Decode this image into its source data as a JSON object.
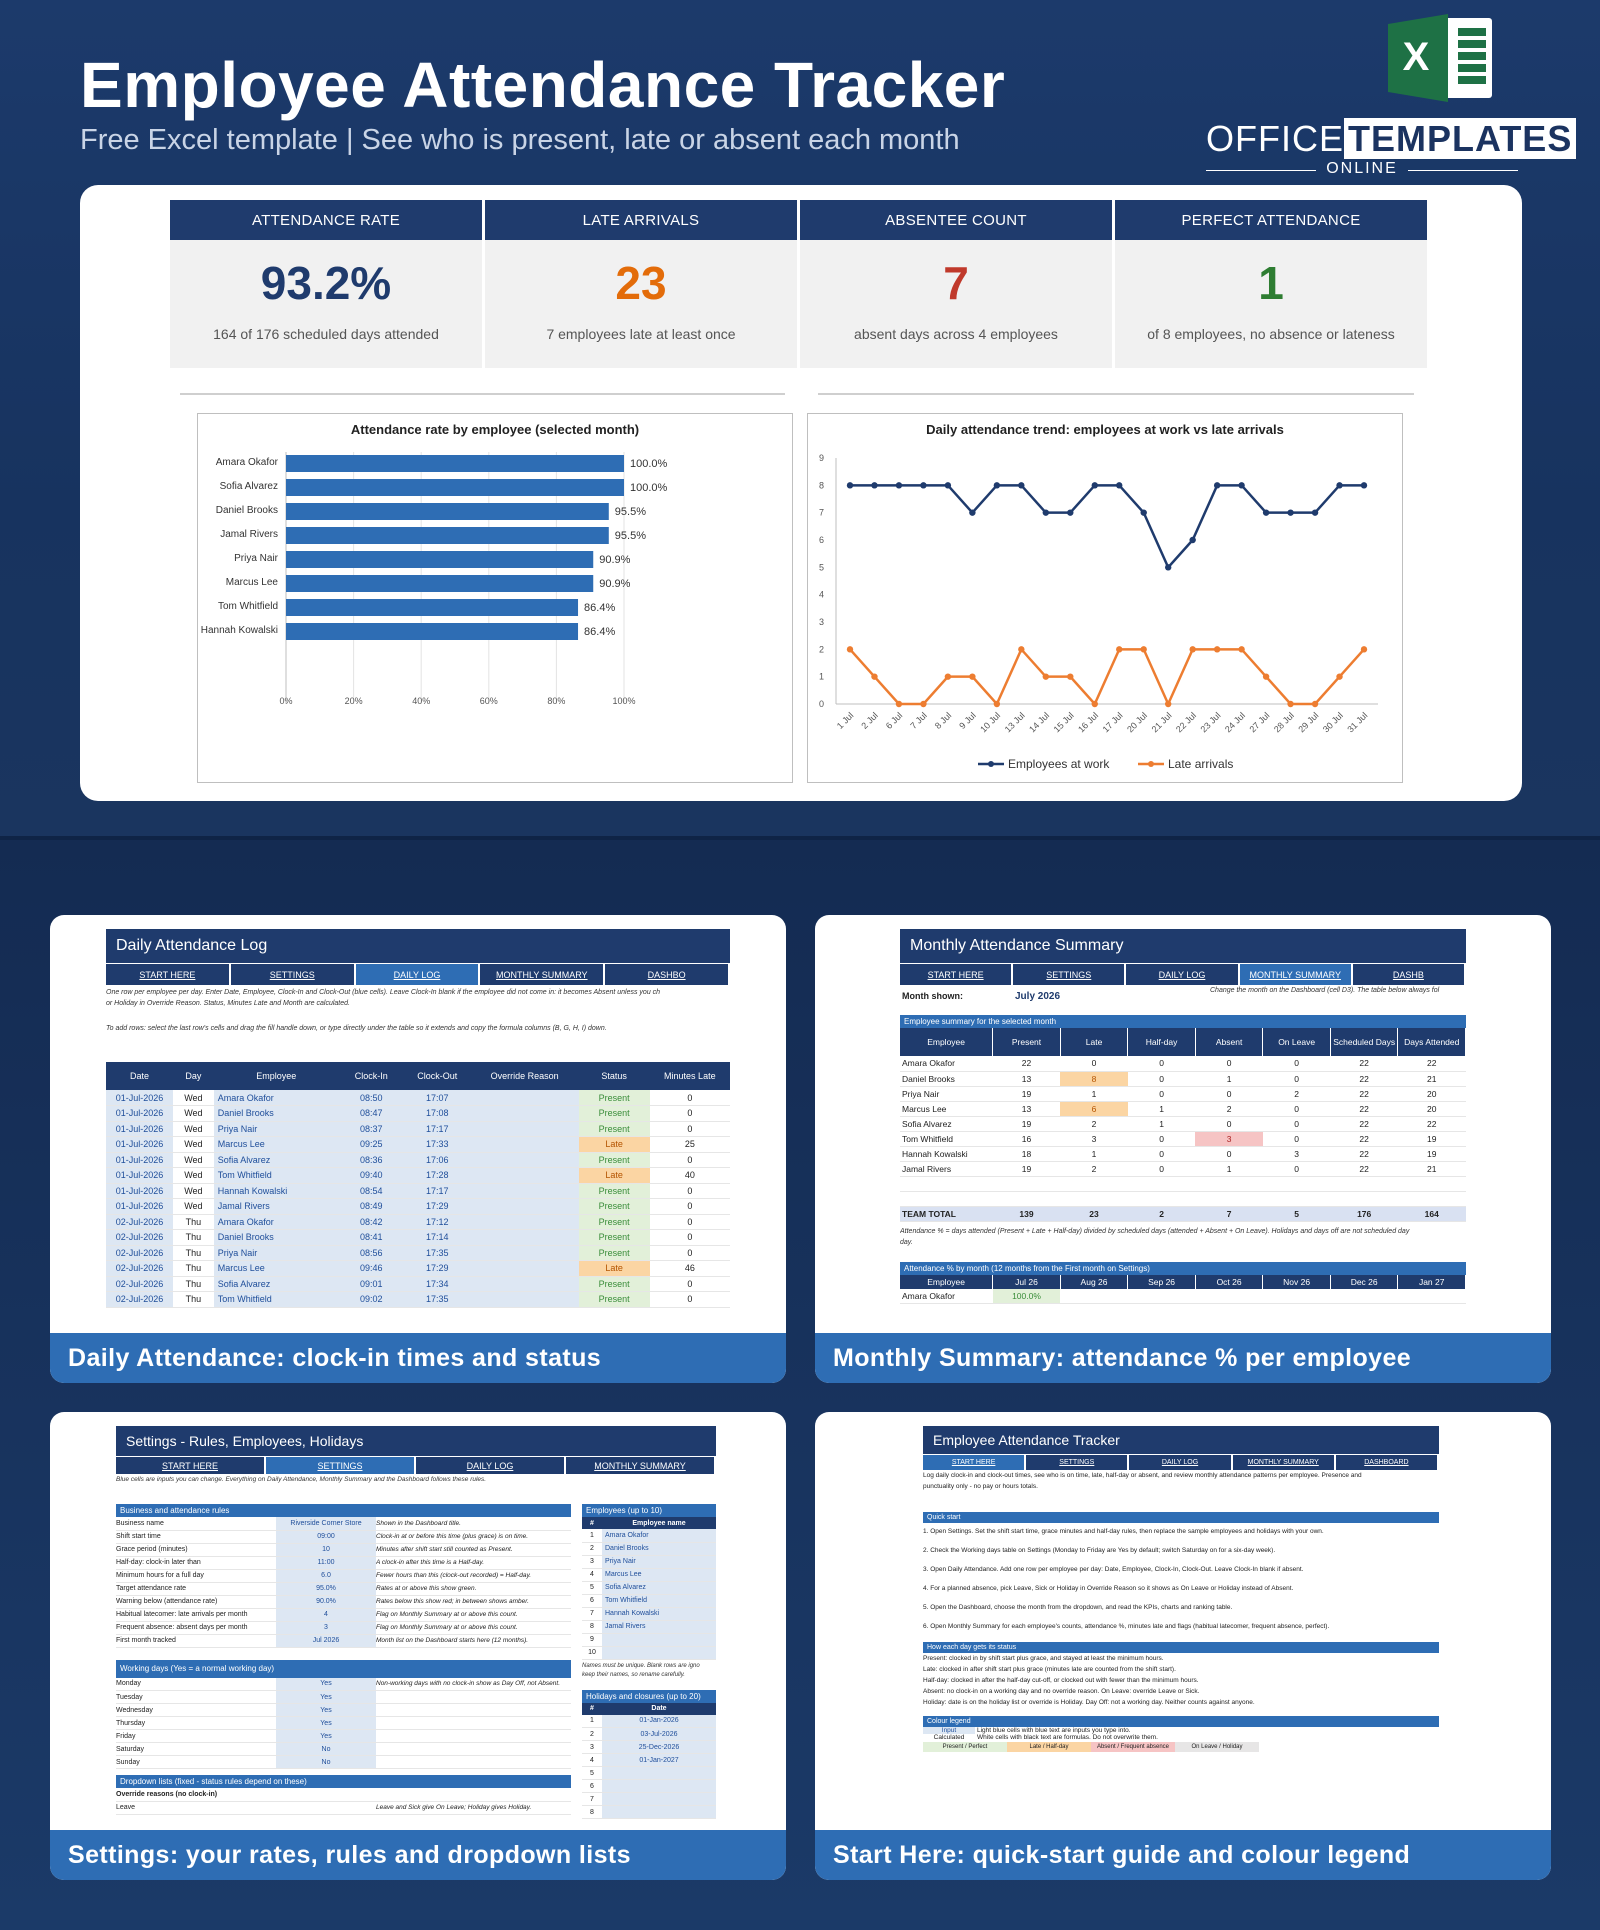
{
  "header": {
    "title": "Employee Attendance Tracker",
    "subtitle": "Free Excel template  |  See who is present, late or absent each month",
    "logo_word1": "OFFICE",
    "logo_word2": "TEMPLATES",
    "logo_sub": "ONLINE",
    "excel_letter": "X"
  },
  "kpis": [
    {
      "label": "ATTENDANCE RATE",
      "value": "93.2%",
      "sub": "164 of 176 scheduled days attended",
      "color": "#1f3b6d"
    },
    {
      "label": "LATE ARRIVALS",
      "value": "23",
      "sub": "7 employees late at least once",
      "color": "#e36c0a"
    },
    {
      "label": "ABSENTEE COUNT",
      "value": "7",
      "sub": "absent days across 4 employees",
      "color": "#c0392b"
    },
    {
      "label": "PERFECT ATTENDANCE",
      "value": "1",
      "sub": "of 8 employees, no absence or lateness",
      "color": "#2e7d32"
    }
  ],
  "chart_data": [
    {
      "type": "bar",
      "title": "Attendance rate by employee (selected month)",
      "categories": [
        "Amara Okafor",
        "Sofia Alvarez",
        "Daniel Brooks",
        "Jamal Rivers",
        "Priya Nair",
        "Marcus Lee",
        "Tom Whitfield",
        "Hannah Kowalski"
      ],
      "values": [
        100.0,
        100.0,
        95.5,
        95.5,
        90.9,
        90.9,
        86.4,
        86.4
      ],
      "labels": [
        "100.0%",
        "100.0%",
        "95.5%",
        "95.5%",
        "90.9%",
        "90.9%",
        "86.4%",
        "86.4%"
      ],
      "xticks": [
        "0%",
        "20%",
        "40%",
        "60%",
        "80%",
        "100%"
      ],
      "xlim": [
        0,
        100
      ],
      "color": "#2e6db4"
    },
    {
      "type": "line",
      "title": "Daily attendance trend: employees at work vs late arrivals",
      "x": [
        "1 Jul",
        "2 Jul",
        "6 Jul",
        "7 Jul",
        "8 Jul",
        "9 Jul",
        "10 Jul",
        "13 Jul",
        "14 Jul",
        "15 Jul",
        "16 Jul",
        "17 Jul",
        "20 Jul",
        "21 Jul",
        "22 Jul",
        "23 Jul",
        "24 Jul",
        "27 Jul",
        "28 Jul",
        "29 Jul",
        "30 Jul",
        "31 Jul"
      ],
      "series": [
        {
          "name": "Employees at work",
          "values": [
            8,
            8,
            8,
            8,
            8,
            7,
            8,
            8,
            7,
            7,
            8,
            8,
            7,
            5,
            6,
            8,
            8,
            7,
            7,
            7,
            8,
            8
          ],
          "color": "#1f3b6d"
        },
        {
          "name": "Late arrivals",
          "values": [
            2,
            1,
            0,
            0,
            1,
            1,
            0,
            2,
            1,
            1,
            0,
            2,
            2,
            0,
            2,
            2,
            2,
            1,
            0,
            0,
            1,
            2
          ],
          "color": "#ed7d31"
        }
      ],
      "ylim": [
        0,
        9
      ],
      "yticks": [
        "0",
        "1",
        "2",
        "3",
        "4",
        "5",
        "6",
        "7",
        "8",
        "9"
      ],
      "legend": "bottom"
    }
  ],
  "panels": {
    "daily": {
      "caption": "Daily Attendance: clock-in times and status",
      "title": "Daily Attendance Log",
      "tabs": [
        "START HERE",
        "SETTINGS",
        "DAILY LOG",
        "MONTHLY SUMMARY",
        "DASHBO"
      ],
      "note1": "One row per employee per day. Enter Date, Employee, Clock-In and Clock-Out (blue cells). Leave Clock-In blank if the employee did not come in: it becomes Absent unless you ch",
      "note2": "or Holiday in Override Reason. Status, Minutes Late and Month are calculated.",
      "note3": "To add rows: select the last row's cells and drag the fill handle down, or type directly under the table so it extends and copy the formula columns (B, G, H, I) down.",
      "headers": [
        "Date",
        "Day",
        "Employee",
        "Clock-In",
        "Clock-Out",
        "Override Reason",
        "Status",
        "Minutes Late"
      ],
      "rows": [
        [
          "01-Jul-2026",
          "Wed",
          "Amara Okafor",
          "08:50",
          "17:07",
          "",
          "Present",
          "0"
        ],
        [
          "01-Jul-2026",
          "Wed",
          "Daniel Brooks",
          "08:47",
          "17:08",
          "",
          "Present",
          "0"
        ],
        [
          "01-Jul-2026",
          "Wed",
          "Priya Nair",
          "08:37",
          "17:17",
          "",
          "Present",
          "0"
        ],
        [
          "01-Jul-2026",
          "Wed",
          "Marcus Lee",
          "09:25",
          "17:33",
          "",
          "Late",
          "25"
        ],
        [
          "01-Jul-2026",
          "Wed",
          "Sofia Alvarez",
          "08:36",
          "17:06",
          "",
          "Present",
          "0"
        ],
        [
          "01-Jul-2026",
          "Wed",
          "Tom Whitfield",
          "09:40",
          "17:28",
          "",
          "Late",
          "40"
        ],
        [
          "01-Jul-2026",
          "Wed",
          "Hannah Kowalski",
          "08:54",
          "17:17",
          "",
          "Present",
          "0"
        ],
        [
          "01-Jul-2026",
          "Wed",
          "Jamal Rivers",
          "08:49",
          "17:29",
          "",
          "Present",
          "0"
        ],
        [
          "02-Jul-2026",
          "Thu",
          "Amara Okafor",
          "08:42",
          "17:12",
          "",
          "Present",
          "0"
        ],
        [
          "02-Jul-2026",
          "Thu",
          "Daniel Brooks",
          "08:41",
          "17:14",
          "",
          "Present",
          "0"
        ],
        [
          "02-Jul-2026",
          "Thu",
          "Priya Nair",
          "08:56",
          "17:35",
          "",
          "Present",
          "0"
        ],
        [
          "02-Jul-2026",
          "Thu",
          "Marcus Lee",
          "09:46",
          "17:29",
          "",
          "Late",
          "46"
        ],
        [
          "02-Jul-2026",
          "Thu",
          "Sofia Alvarez",
          "09:01",
          "17:34",
          "",
          "Present",
          "0"
        ],
        [
          "02-Jul-2026",
          "Thu",
          "Tom Whitfield",
          "09:02",
          "17:35",
          "",
          "Present",
          "0"
        ]
      ]
    },
    "monthly": {
      "caption": "Monthly Summary: attendance % per employee",
      "title": "Monthly Attendance Summary",
      "tabs": [
        "START HERE",
        "SETTINGS",
        "DAILY LOG",
        "MONTHLY SUMMARY",
        "DASHB"
      ],
      "month_label": "Month shown:",
      "month_value": "July 2026",
      "month_note": "Change the month on the Dashboard (cell D3). The table below always fol",
      "section1": "Employee summary for the selected month",
      "headers": [
        "Employee",
        "Present",
        "Late",
        "Half-day",
        "Absent",
        "On Leave",
        "Scheduled Days",
        "Days Attended"
      ],
      "rows": [
        [
          "Amara Okafor",
          "22",
          "0",
          "0",
          "0",
          "0",
          "22",
          "22"
        ],
        [
          "Daniel Brooks",
          "13",
          "8",
          "0",
          "1",
          "0",
          "22",
          "21"
        ],
        [
          "Priya Nair",
          "19",
          "1",
          "0",
          "0",
          "2",
          "22",
          "20"
        ],
        [
          "Marcus Lee",
          "13",
          "6",
          "1",
          "2",
          "0",
          "22",
          "20"
        ],
        [
          "Sofia Alvarez",
          "19",
          "2",
          "1",
          "0",
          "0",
          "22",
          "22"
        ],
        [
          "Tom Whitfield",
          "16",
          "3",
          "0",
          "3",
          "0",
          "22",
          "19"
        ],
        [
          "Hannah Kowalski",
          "18",
          "1",
          "0",
          "0",
          "3",
          "22",
          "19"
        ],
        [
          "Jamal Rivers",
          "19",
          "2",
          "0",
          "1",
          "0",
          "22",
          "21"
        ]
      ],
      "total": [
        "TEAM TOTAL",
        "139",
        "23",
        "2",
        "7",
        "5",
        "176",
        "164"
      ],
      "note": "Attendance % = days attended (Present + Late + Half-day) divided by scheduled days (attended + Absent + On Leave). Holidays and days off are not scheduled day",
      "note_b": "day.",
      "section2": "Attendance % by month (12 months from the First month on Settings)",
      "months": [
        "Employee",
        "Jul 26",
        "Aug 26",
        "Sep 26",
        "Oct 26",
        "Nov 26",
        "Dec 26",
        "Jan 27"
      ],
      "month_row": [
        "Amara Okafor",
        "100.0%",
        "",
        "",
        "",
        "",
        "",
        ""
      ]
    },
    "settings": {
      "caption": "Settings: your rates, rules and dropdown lists",
      "title": "Settings - Rules, Employees, Holidays",
      "tabs": [
        "START HERE",
        "SETTINGS",
        "DAILY LOG",
        "MONTHLY SUMMARY"
      ],
      "note": "Blue cells are inputs you can change. Everything on Daily Attendance, Monthly Summary and the Dashboard follows these rules.",
      "rules_title": "Business and attendance rules",
      "rules": [
        [
          "Business name",
          "Riverside Corner Store",
          "Shown in the Dashboard title."
        ],
        [
          "Shift start time",
          "09:00",
          "Clock-in at or before this time (plus grace) is on time."
        ],
        [
          "Grace period (minutes)",
          "10",
          "Minutes after shift start still counted as Present."
        ],
        [
          "Half-day: clock-in later than",
          "11:00",
          "A clock-in after this time is a Half-day."
        ],
        [
          "Minimum hours for a full day",
          "6.0",
          "Fewer hours than this (clock-out recorded) = Half-day."
        ],
        [
          "Target attendance rate",
          "95.0%",
          "Rates at or above this show green."
        ],
        [
          "Warning below (attendance rate)",
          "90.0%",
          "Rates below this show red; in between shows amber."
        ],
        [
          "Habitual latecomer: late arrivals per month",
          "4",
          "Flag on Monthly Summary at or above this count."
        ],
        [
          "Frequent absence: absent days per month",
          "3",
          "Flag on Monthly Summary at or above this count."
        ],
        [
          "First month tracked",
          "Jul 2026",
          "Month list on the Dashboard starts here (12 months)."
        ]
      ],
      "work_title": "Working days (Yes = a normal working day)",
      "work_note": "Non-working days with no clock-in show as Day Off, not Absent.",
      "workdays": [
        [
          "Monday",
          "Yes"
        ],
        [
          "Tuesday",
          "Yes"
        ],
        [
          "Wednesday",
          "Yes"
        ],
        [
          "Thursday",
          "Yes"
        ],
        [
          "Friday",
          "Yes"
        ],
        [
          "Saturday",
          "No"
        ],
        [
          "Sunday",
          "No"
        ]
      ],
      "drop_title": "Dropdown lists (fixed - status rules depend on these)",
      "drop_sub": "Override reasons (no clock-in)",
      "drop_row": "Leave",
      "drop_note": "Leave and Sick give On Leave; Holiday gives Holiday.",
      "emp_title": "Employees (up to 10)",
      "emp_headers": [
        "#",
        "Employee name"
      ],
      "employees": [
        "Amara Okafor",
        "Daniel Brooks",
        "Priya Nair",
        "Marcus Lee",
        "Sofia Alvarez",
        "Tom Whitfield",
        "Hannah Kowalski",
        "Jamal Rivers",
        "",
        ""
      ],
      "emp_note1": "Names must be unique. Blank rows are igno",
      "emp_note2": "keep their names, so rename carefully.",
      "hol_title": "Holidays and closures (up to 20)",
      "hol_headers": [
        "#",
        "Date"
      ],
      "holidays": [
        "01-Jan-2026",
        "03-Jul-2026",
        "25-Dec-2026",
        "01-Jan-2027",
        "",
        "",
        "",
        ""
      ]
    },
    "start": {
      "caption": "Start Here: quick-start guide and colour legend",
      "title": "Employee Attendance Tracker",
      "tabs": [
        "START HERE",
        "SETTINGS",
        "DAILY LOG",
        "MONTHLY SUMMARY",
        "DASHBOARD"
      ],
      "intro1": "Log daily clock-in and clock-out times, see who is on time, late, half-day or absent, and review monthly attendance patterns per employee. Presence and",
      "intro2": "punctuality only - no pay or hours totals.",
      "qs_title": "Quick start",
      "steps": [
        "1.  Open Settings. Set the shift start time, grace minutes and half-day rules, then replace the sample employees and holidays with your own.",
        "2.  Check the Working days table on Settings (Monday to Friday are Yes by default; switch Saturday on for a six-day week).",
        "3.  Open Daily Attendance. Add one row per employee per day: Date, Employee, Clock-In, Clock-Out. Leave Clock-In blank if absent.",
        "4.  For a planned absence, pick Leave, Sick or Holiday in Override Reason so it shows as On Leave or Holiday instead of Absent.",
        "5.  Open the Dashboard, choose the month from the dropdown, and read the KPIs, charts and ranking table.",
        "6.  Open Monthly Summary for each employee's counts, attendance %, minutes late and flags (habitual latecomer, frequent absence, perfect)."
      ],
      "status_title": "How each day gets its status",
      "status_lines": [
        "Present: clocked in by shift start plus grace, and stayed at least the minimum hours.",
        "Late: clocked in after shift start plus grace (minutes late are counted from the shift start).",
        "Half-day: clocked in after the half-day cut-off, or clocked out with fewer than the minimum hours.",
        "Absent: no clock-in on a working day and no override reason.    On Leave: override Leave or Sick.",
        "Holiday: date is on the holiday list or override is Holiday.   Day Off: not a working day. Neither counts against anyone."
      ],
      "legend_title": "Colour legend",
      "legend": [
        [
          "Input",
          "Light blue cells with blue text are inputs you type into."
        ],
        [
          "Calculated",
          "White cells with black text are formulas. Do not overwrite them."
        ]
      ],
      "swatches": [
        "Present / Perfect",
        "Late / Half-day",
        "Absent / Frequent absence",
        "On Leave / Holiday"
      ]
    }
  }
}
